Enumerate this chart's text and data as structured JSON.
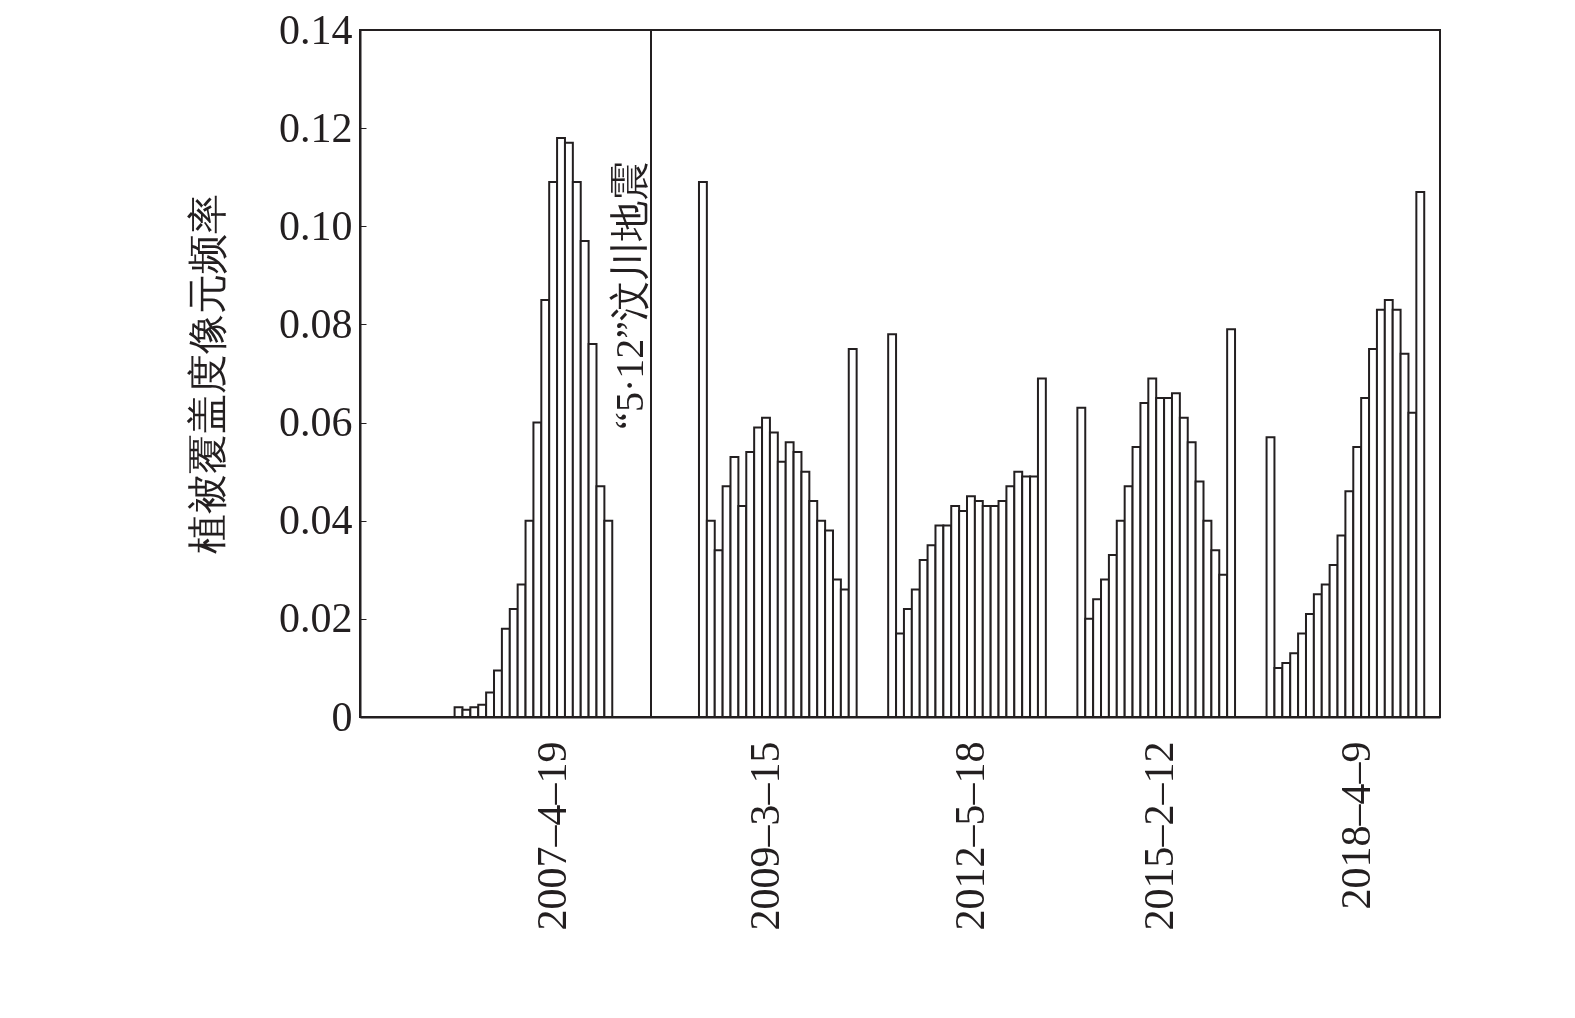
{
  "chart_data": {
    "type": "bar",
    "ylabel": "植被覆盖度像元频率",
    "color": "#ffffff",
    "categories": [
      null,
      null,
      null,
      null,
      null,
      null,
      null,
      null,
      null,
      null,
      null,
      null,
      null,
      null,
      null,
      null,
      null,
      null,
      null,
      null,
      null,
      null,
      null,
      null,
      "2007–4–19",
      null,
      null,
      null,
      null,
      null,
      null,
      null,
      null,
      null,
      null,
      null,
      null,
      null,
      null,
      null,
      null,
      null,
      null,
      null,
      null,
      null,
      null,
      null,
      null,
      null,
      null,
      "2009–3–15",
      null,
      null,
      null,
      null,
      null,
      null,
      null,
      null,
      null,
      null,
      null,
      null,
      null,
      null,
      null,
      null,
      null,
      null,
      null,
      null,
      null,
      null,
      null,
      null,
      null,
      "2012–5–18",
      null,
      null,
      null,
      null,
      null,
      null,
      null,
      null,
      null,
      null,
      null,
      null,
      null,
      null,
      null,
      null,
      null,
      null,
      null,
      null,
      null,
      null,
      null,
      "2015–2–12",
      null,
      null,
      null,
      null,
      null,
      null,
      null,
      null,
      null,
      null,
      null,
      null,
      null,
      null,
      null,
      null,
      null,
      null,
      null,
      null,
      null,
      null,
      null,
      null,
      "2018–4–9",
      null,
      null,
      null,
      null,
      null,
      null,
      null,
      null,
      null,
      null
    ],
    "values": [
      null,
      null,
      null,
      null,
      null,
      null,
      null,
      null,
      null,
      null,
      null,
      null,
      0.002,
      0.0015,
      0.002,
      0.0025,
      0.005,
      0.0095,
      0.018,
      0.022,
      0.027,
      0.04,
      0.06,
      0.085,
      0.109,
      0.118,
      0.117,
      0.109,
      0.097,
      0.076,
      0.047,
      0.04,
      null,
      null,
      null,
      null,
      null,
      null,
      null,
      null,
      null,
      null,
      null,
      0.109,
      0.04,
      0.034,
      0.047,
      0.053,
      0.043,
      0.054,
      0.059,
      0.061,
      0.058,
      0.052,
      0.056,
      0.054,
      0.05,
      0.044,
      0.04,
      0.038,
      0.028,
      0.026,
      0.075,
      null,
      null,
      null,
      null,
      0.078,
      0.017,
      0.022,
      0.026,
      0.032,
      0.035,
      0.039,
      0.039,
      0.043,
      0.042,
      0.045,
      0.044,
      0.043,
      0.043,
      0.044,
      0.047,
      0.05,
      0.049,
      0.049,
      0.069,
      null,
      null,
      null,
      null,
      0.063,
      0.02,
      0.024,
      0.028,
      0.033,
      0.04,
      0.047,
      0.055,
      0.064,
      0.069,
      0.065,
      0.065,
      0.066,
      0.061,
      0.056,
      0.048,
      0.04,
      0.034,
      0.029,
      0.079,
      null,
      null,
      null,
      null,
      0.057,
      0.01,
      0.011,
      0.013,
      0.017,
      0.021,
      0.025,
      0.027,
      0.031,
      0.037,
      0.046,
      0.055,
      0.065,
      0.075,
      0.083,
      0.085,
      0.083,
      0.074,
      0.062,
      0.107,
      null,
      null
    ],
    "ylim": [
      0,
      0.14
    ],
    "yticks": [
      {
        "value": 0,
        "label": "0"
      },
      0.02,
      0.04,
      0.06,
      0.08,
      {
        "value": 0.1,
        "label": "0.10"
      },
      0.12,
      0.14
    ],
    "annotations": [
      "“5·12”汶川地震"
    ]
  }
}
